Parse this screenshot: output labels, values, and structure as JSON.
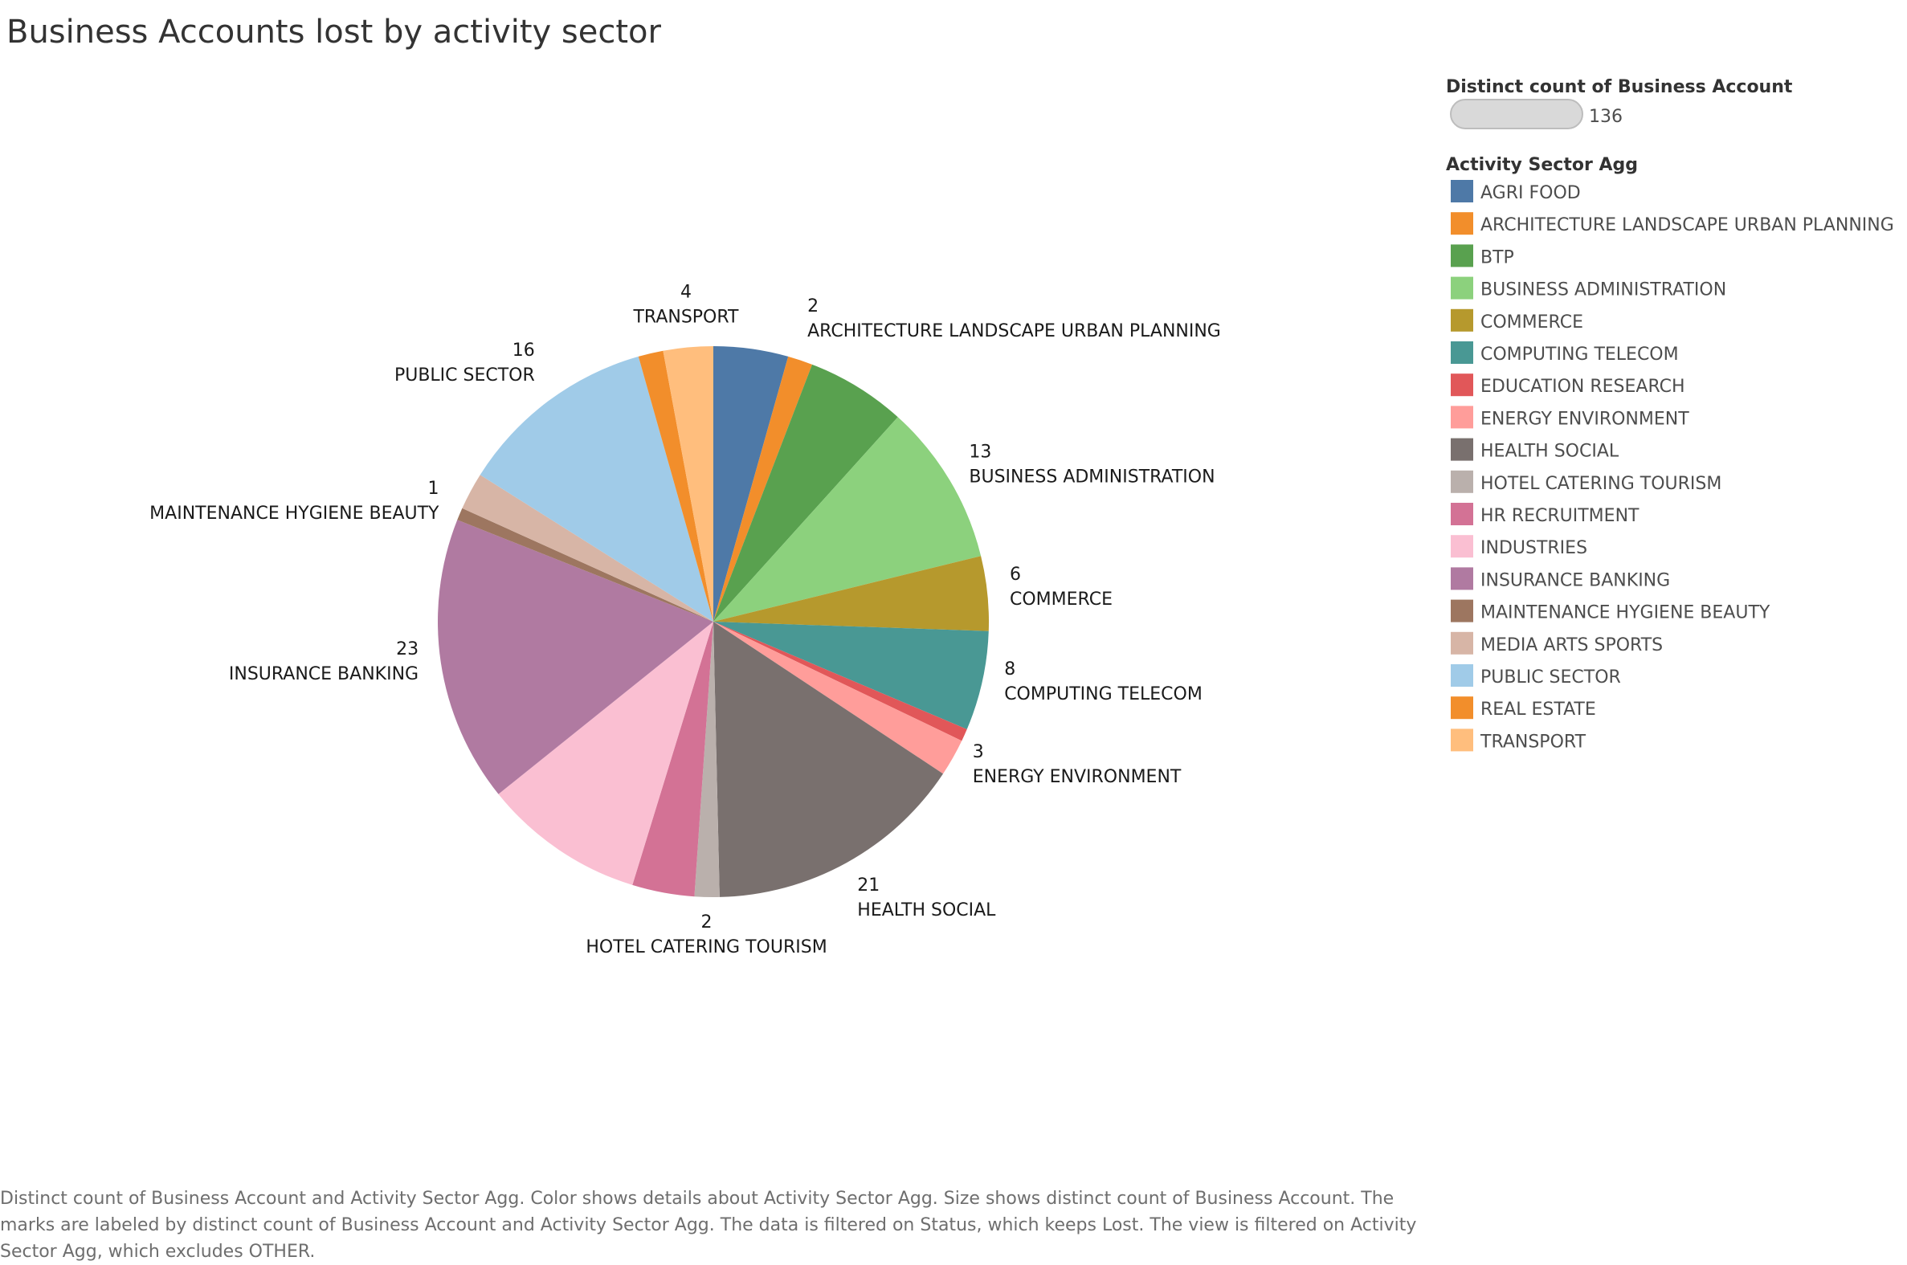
{
  "chart_data": {
    "type": "pie",
    "title": "Business Accounts lost by activity sector",
    "size_legend": {
      "title": "Distinct count of Business Account",
      "value_label": "136"
    },
    "color_legend_title": "Activity Sector Agg",
    "categories": [
      "AGRI FOOD",
      "ARCHITECTURE LANDSCAPE URBAN PLANNING",
      "BTP",
      "BUSINESS ADMINISTRATION",
      "COMMERCE",
      "COMPUTING TELECOM",
      "EDUCATION RESEARCH",
      "ENERGY ENVIRONMENT",
      "HEALTH SOCIAL",
      "HOTEL CATERING TOURISM",
      "HR RECRUITMENT",
      "INDUSTRIES",
      "INSURANCE BANKING",
      "MAINTENANCE HYGIENE BEAUTY",
      "MEDIA ARTS SPORTS",
      "PUBLIC SECTOR",
      "REAL ESTATE",
      "TRANSPORT"
    ],
    "values": [
      6,
      2,
      8,
      13,
      6,
      8,
      1,
      3,
      21,
      2,
      5,
      13,
      23,
      1,
      3,
      16,
      2,
      4
    ],
    "labeled": [
      false,
      true,
      false,
      true,
      true,
      true,
      false,
      true,
      true,
      true,
      false,
      false,
      true,
      true,
      false,
      true,
      false,
      true
    ],
    "colors": [
      "#4e79a7",
      "#f28e2b",
      "#59a14f",
      "#8cd17d",
      "#b6992d",
      "#499894",
      "#e15759",
      "#ff9d9a",
      "#79706e",
      "#bab0ac",
      "#d37295",
      "#fabfd2",
      "#b07aa1",
      "#9d7660",
      "#d7b5a6",
      "#a0cbe8",
      "#f28e2b",
      "#ffbe7d"
    ]
  },
  "caption": "Distinct count of Business Account and Activity Sector Agg.  Color shows details about Activity Sector Agg.  Size shows distinct count of Business Account. The marks are labeled by distinct count of Business Account and Activity Sector Agg. The data is filtered on Status, which keeps Lost. The view is filtered on Activity Sector Agg, which excludes OTHER."
}
